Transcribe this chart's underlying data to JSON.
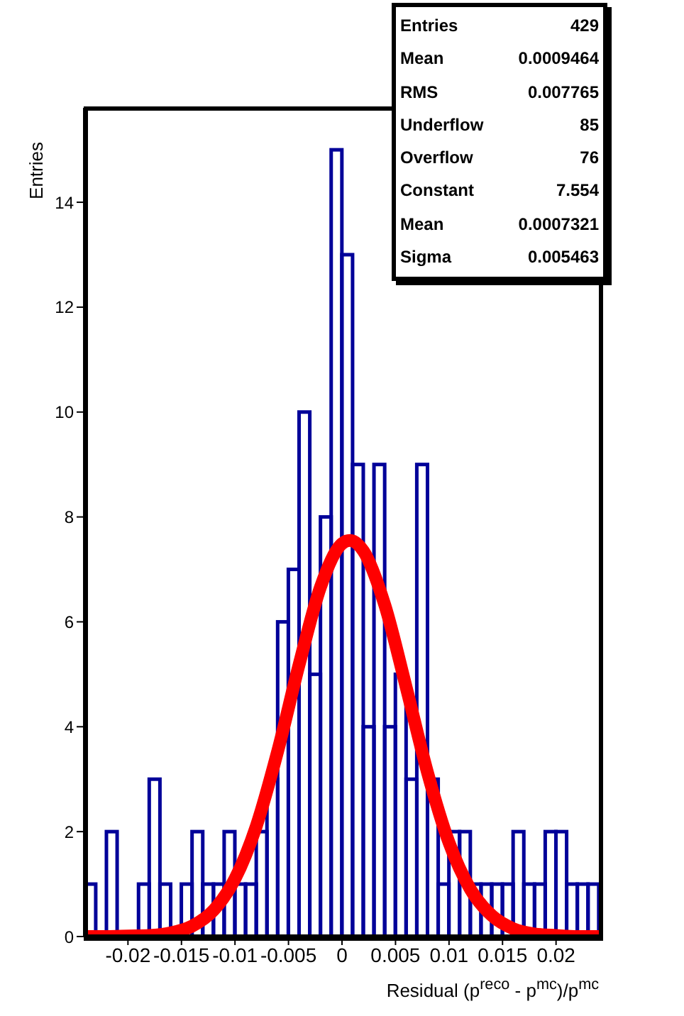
{
  "chart_data": {
    "type": "histogram",
    "xlabel": "Residual (p$^{reco}$ - p$^{mc}$)/p$^{mc}$",
    "ylabel": "Entries",
    "xlim": [
      -0.024,
      0.024
    ],
    "ylim": [
      0,
      15.8
    ],
    "xticks": [
      -0.02,
      -0.015,
      -0.01,
      -0.005,
      0,
      0.005,
      0.01,
      0.015,
      0.02
    ],
    "yticks": [
      0,
      2,
      4,
      6,
      8,
      10,
      12,
      14
    ],
    "annotations": [
      "Entries 429",
      "Mean 0.0009464",
      "RMS 0.007765",
      "Underflow 85",
      "Overflow 76",
      "Constant 7.554",
      "Mean 0.0007321",
      "Sigma 0.005463"
    ],
    "series": [
      {
        "color": "#000099",
        "bins": [
          -0.024,
          -0.023,
          -0.022,
          -0.021,
          -0.02,
          -0.019,
          -0.018,
          -0.017,
          -0.016,
          -0.015,
          -0.014,
          -0.013,
          -0.012,
          -0.011,
          -0.01,
          -0.009,
          -0.008,
          -0.007,
          -0.006,
          -0.005,
          -0.004,
          -0.003,
          -0.002,
          -0.001,
          0,
          0.001,
          0.002,
          0.003,
          0.004,
          0.005,
          0.006,
          0.007,
          0.008,
          0.009,
          0.01,
          0.011,
          0.012,
          0.013,
          0.014,
          0.015,
          0.016,
          0.017,
          0.018,
          0.019,
          0.02,
          0.021,
          0.022,
          0.023,
          0.024
        ],
        "values": [
          1,
          0,
          2,
          0,
          0,
          1,
          3,
          1,
          0,
          1,
          2,
          1,
          1,
          2,
          1,
          1,
          2,
          3,
          6,
          7,
          10,
          5,
          8,
          15,
          13,
          9,
          4,
          9,
          4,
          5,
          3,
          9,
          3,
          1,
          2,
          2,
          1,
          1,
          1,
          1,
          2,
          1,
          1,
          2,
          2,
          1,
          1,
          1
        ]
      },
      {
        "type": "line",
        "color": "#ff0000",
        "x": [
          -0.024,
          -0.022,
          -0.02,
          -0.018,
          -0.016,
          -0.014,
          -0.012,
          -0.01,
          -0.008,
          -0.006,
          -0.004,
          -0.002,
          0,
          0.0007321,
          0.002,
          0.004,
          0.006,
          0.008,
          0.01,
          0.012,
          0.014,
          0.016,
          0.018,
          0.02,
          0.022,
          0.024
        ],
        "values": [
          0,
          0,
          0.01,
          0.02,
          0.07,
          0.2,
          0.5,
          1.1,
          2.11,
          3.54,
          5.19,
          6.67,
          7.49,
          7.55,
          7.35,
          6.32,
          4.75,
          3.12,
          1.79,
          0.9,
          0.4,
          0.15,
          0.05,
          0.02,
          0,
          0
        ]
      }
    ]
  }
}
